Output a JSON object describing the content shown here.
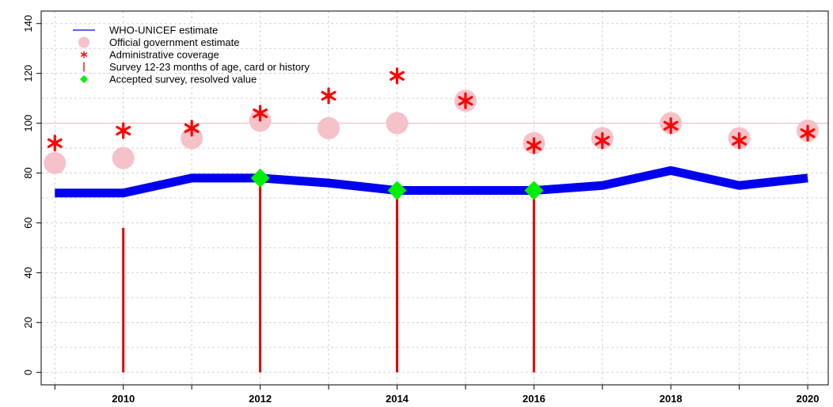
{
  "chart_data": {
    "type": "line",
    "title": "",
    "xlabel": "",
    "ylabel": "",
    "xlim": [
      2008.8,
      2020.3
    ],
    "ylim": [
      -5,
      145
    ],
    "x_ticks": [
      "2010",
      "2012",
      "2014",
      "2016",
      "2018",
      "2020"
    ],
    "y_ticks": [
      "0",
      "20",
      "40",
      "60",
      "80",
      "100",
      "120",
      "140"
    ],
    "grid": true,
    "reference_line": 100,
    "legend_position": "top-left",
    "legend": [
      {
        "key": "who",
        "label": "WHO-UNICEF estimate"
      },
      {
        "key": "official",
        "label": "Official government estimate"
      },
      {
        "key": "admin",
        "label": "Administrative coverage"
      },
      {
        "key": "survey",
        "label": "Survey 12-23 months of age, card or history"
      },
      {
        "key": "accepted",
        "label": "Accepted survey, resolved value"
      }
    ],
    "colors": {
      "who": "#0000ee",
      "official": "#f4c2c8",
      "admin": "#ff0000",
      "survey": "#e00000",
      "accepted": "#00ee00",
      "grid": "#d3d3d3",
      "reference": "#f4b6bd"
    },
    "who_unicef_estimate": {
      "x": [
        2009,
        2010,
        2011,
        2012,
        2013,
        2014,
        2015,
        2016,
        2017,
        2018,
        2019,
        2020
      ],
      "y": [
        72,
        72,
        78,
        78,
        76,
        73,
        73,
        73,
        75,
        81,
        75,
        78
      ]
    },
    "official_government_estimate": {
      "x": [
        2009,
        2010,
        2011,
        2012,
        2013,
        2014,
        2015,
        2016,
        2017,
        2018,
        2019,
        2020
      ],
      "y": [
        84,
        86,
        94,
        101,
        98,
        100,
        109,
        92,
        94,
        100,
        94,
        97
      ]
    },
    "administrative_coverage": {
      "x": [
        2009,
        2010,
        2011,
        2012,
        2013,
        2014,
        2015,
        2016,
        2017,
        2018,
        2019,
        2020
      ],
      "y": [
        92,
        97,
        98,
        104,
        111,
        119,
        109,
        91,
        93,
        99,
        93,
        96
      ]
    },
    "survey": {
      "x": [
        2010,
        2012,
        2014,
        2016
      ],
      "y": [
        58,
        78,
        73,
        73
      ]
    },
    "accepted_survey": {
      "x": [
        2012,
        2014,
        2016
      ],
      "y": [
        78,
        73,
        73
      ]
    }
  }
}
